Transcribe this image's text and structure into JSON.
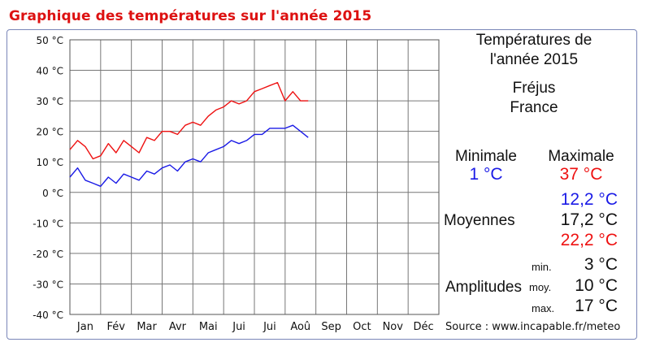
{
  "page": {
    "title": "Graphique des températures sur l'année 2015"
  },
  "colors": {
    "title": "#dd1111",
    "minimum": "#1a1ae6",
    "maximum": "#ee1111",
    "grid": "#777777"
  },
  "summary": {
    "heading_line1": "Températures de",
    "heading_line2": "l'année 2015",
    "city": "Fréjus",
    "country": "France",
    "minimale_label": "Minimale",
    "maximale_label": "Maximale",
    "minimale_value": "1 °C",
    "maximale_value": "37 °C",
    "moyennes_label": "Moyennes",
    "moyenne_min": "12,2 °C",
    "moyenne_moy": "17,2 °C",
    "moyenne_max": "22,2 °C",
    "amplitudes_label": "Amplitudes",
    "amp_min_label": "min.",
    "amp_moy_label": "moy.",
    "amp_max_label": "max.",
    "amp_min": "3 °C",
    "amp_moy": "10 °C",
    "amp_max": "17 °C"
  },
  "source": "Source : www.incapable.fr/meteo",
  "chart_data": {
    "type": "line",
    "title": "Graphique des températures sur l'année 2015",
    "xlabel": "",
    "ylabel": "",
    "ylim": [
      -40,
      50
    ],
    "y_ticks": [
      50,
      40,
      30,
      20,
      10,
      0,
      -10,
      -20,
      -30,
      -40
    ],
    "y_tick_labels": [
      "50 °C",
      "40 °C",
      "30 °C",
      "20 °C",
      "10 °C",
      "0 °C",
      "-10 °C",
      "-20 °C",
      "-30 °C",
      "-40 °C"
    ],
    "categories": [
      "Jan",
      "Fév",
      "Mar",
      "Avr",
      "Mai",
      "Jui",
      "Jui",
      "Aoû",
      "Sep",
      "Oct",
      "Nov",
      "Déc"
    ],
    "grid": true,
    "x": [
      0.0,
      0.25,
      0.5,
      0.75,
      1.0,
      1.25,
      1.5,
      1.75,
      2.0,
      2.25,
      2.5,
      2.75,
      3.0,
      3.25,
      3.5,
      3.75,
      4.0,
      4.25,
      4.5,
      4.75,
      5.0,
      5.25,
      5.5,
      5.75,
      6.0,
      6.25,
      6.5,
      6.75,
      7.0,
      7.25,
      7.5,
      7.75
    ],
    "series": [
      {
        "values": [
          5,
          8,
          4,
          3,
          2,
          5,
          3,
          6,
          5,
          4,
          7,
          6,
          8,
          9,
          7,
          10,
          11,
          10,
          13,
          14,
          15,
          17,
          16,
          17,
          19,
          19,
          21,
          21,
          21,
          22,
          20,
          18
        ]
      },
      {
        "values": [
          14,
          17,
          15,
          11,
          12,
          16,
          13,
          17,
          15,
          13,
          18,
          17,
          20,
          20,
          19,
          22,
          23,
          22,
          25,
          27,
          28,
          30,
          29,
          30,
          33,
          34,
          35,
          36,
          30,
          33,
          30,
          30
        ]
      }
    ]
  }
}
